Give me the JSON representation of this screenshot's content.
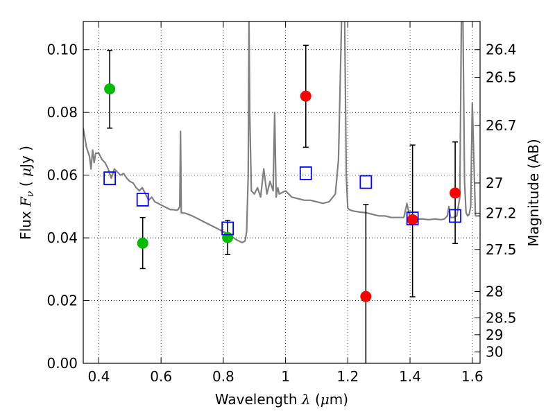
{
  "chart_data": {
    "type": "scatter",
    "xlabel_text": "Wavelength",
    "xlabel_symbol": "λ",
    "xlabel_unit_open": " (",
    "xlabel_unit_mu": "μ",
    "xlabel_unit_rest": "m)",
    "ylabel_text": "Flux",
    "ylabel_symbol_F": "F",
    "ylabel_symbol_nu": "ν",
    "ylabel_unit_open": "( ",
    "ylabel_unit_mu": "μ",
    "ylabel_unit_rest": "Jy )",
    "y2label": "Magnitude (AB)",
    "xlim": [
      0.35,
      1.625
    ],
    "ylim": [
      0.0,
      0.109
    ],
    "grid": true,
    "x_ticks": [
      0.4,
      0.6,
      0.8,
      1.0,
      1.2,
      1.4,
      1.6
    ],
    "x_tick_labels": [
      "0.4",
      "0.6",
      "0.8",
      "1",
      "1.2",
      "1.4",
      "1.6"
    ],
    "y_ticks": [
      0.0,
      0.02,
      0.04,
      0.06,
      0.08,
      0.1
    ],
    "y_tick_labels": [
      "0.00",
      "0.02",
      "0.04",
      "0.06",
      "0.08",
      "0.10"
    ],
    "y2_ticks": [
      {
        "flux": 0.1,
        "label": "26.4"
      },
      {
        "flux": 0.0912,
        "label": "26.5"
      },
      {
        "flux": 0.0758,
        "label": "26.7"
      },
      {
        "flux": 0.0575,
        "label": "27"
      },
      {
        "flux": 0.0479,
        "label": "27.2"
      },
      {
        "flux": 0.0363,
        "label": "27.5"
      },
      {
        "flux": 0.0229,
        "label": "28"
      },
      {
        "flux": 0.0145,
        "label": "28.5"
      },
      {
        "flux": 0.0091,
        "label": "29"
      },
      {
        "flux": 0.0036,
        "label": "30"
      }
    ],
    "series": [
      {
        "color": "#00bb00",
        "marker": "circle",
        "points": [
          {
            "x": 0.435,
            "y": 0.0875,
            "ylo": 0.075,
            "yhi": 0.0998
          },
          {
            "x": 0.541,
            "y": 0.0383,
            "ylo": 0.0302,
            "yhi": 0.0465
          },
          {
            "x": 0.814,
            "y": 0.0401,
            "ylo": 0.0347,
            "yhi": 0.0456
          }
        ]
      },
      {
        "color": "#ff0000",
        "marker": "circle",
        "points": [
          {
            "x": 1.065,
            "y": 0.0852,
            "ylo": 0.0689,
            "yhi": 0.1014
          },
          {
            "x": 1.258,
            "y": 0.0213,
            "ylo": -0.01,
            "yhi": 0.0506
          },
          {
            "x": 1.408,
            "y": 0.0458,
            "ylo": 0.0212,
            "yhi": 0.0696
          },
          {
            "x": 1.545,
            "y": 0.0543,
            "ylo": 0.0382,
            "yhi": 0.0706
          }
        ]
      },
      {
        "color": "#0000ff",
        "marker": "open-square",
        "points": [
          {
            "x": 0.435,
            "y": 0.059
          },
          {
            "x": 0.541,
            "y": 0.0522
          },
          {
            "x": 0.814,
            "y": 0.043
          },
          {
            "x": 1.065,
            "y": 0.0606
          },
          {
            "x": 1.258,
            "y": 0.0578
          },
          {
            "x": 1.408,
            "y": 0.0462
          },
          {
            "x": 1.545,
            "y": 0.047
          }
        ]
      }
    ],
    "spectrum": {
      "color": "#808080",
      "x": [
        0.35,
        0.36,
        0.37,
        0.375,
        0.38,
        0.385,
        0.39,
        0.4,
        0.41,
        0.42,
        0.43,
        0.44,
        0.45,
        0.46,
        0.47,
        0.48,
        0.49,
        0.5,
        0.51,
        0.52,
        0.53,
        0.54,
        0.55,
        0.56,
        0.57,
        0.58,
        0.59,
        0.6,
        0.61,
        0.62,
        0.63,
        0.64,
        0.65,
        0.655,
        0.66,
        0.6625,
        0.665,
        0.67,
        0.68,
        0.7,
        0.72,
        0.74,
        0.76,
        0.78,
        0.8,
        0.82,
        0.84,
        0.86,
        0.87,
        0.875,
        0.88,
        0.8825,
        0.885,
        0.89,
        0.9,
        0.91,
        0.92,
        0.93,
        0.94,
        0.95,
        0.96,
        0.965,
        0.97,
        0.975,
        0.98,
        0.99,
        1.0,
        1.02,
        1.04,
        1.06,
        1.08,
        1.1,
        1.12,
        1.14,
        1.16,
        1.17,
        1.18,
        1.185,
        1.19,
        1.195,
        1.2,
        1.205,
        1.21,
        1.22,
        1.24,
        1.26,
        1.28,
        1.3,
        1.32,
        1.34,
        1.36,
        1.38,
        1.39,
        1.4,
        1.42,
        1.44,
        1.46,
        1.48,
        1.5,
        1.51,
        1.52,
        1.525,
        1.53,
        1.54,
        1.55,
        1.555,
        1.56,
        1.565,
        1.57,
        1.575,
        1.58,
        1.585,
        1.59,
        1.595,
        1.6,
        1.61,
        1.625
      ],
      "y": [
        0.075,
        0.069,
        0.066,
        0.062,
        0.068,
        0.064,
        0.067,
        0.067,
        0.065,
        0.064,
        0.062,
        0.059,
        0.062,
        0.061,
        0.06,
        0.0605,
        0.059,
        0.058,
        0.0575,
        0.056,
        0.055,
        0.056,
        0.054,
        0.052,
        0.053,
        0.0515,
        0.051,
        0.0505,
        0.05,
        0.0495,
        0.049,
        0.049,
        0.0488,
        0.049,
        0.05,
        0.074,
        0.048,
        0.048,
        0.0478,
        0.047,
        0.046,
        0.045,
        0.044,
        0.043,
        0.042,
        0.041,
        0.0395,
        0.0385,
        0.039,
        0.042,
        0.06,
        0.11,
        0.08,
        0.055,
        0.054,
        0.056,
        0.053,
        0.062,
        0.054,
        0.058,
        0.055,
        0.08,
        0.053,
        0.056,
        0.054,
        0.0545,
        0.055,
        0.053,
        0.0525,
        0.052,
        0.052,
        0.0515,
        0.051,
        0.0515,
        0.054,
        0.065,
        0.11,
        0.11,
        0.11,
        0.06,
        0.0495,
        0.049,
        0.0488,
        0.0485,
        0.0482,
        0.048,
        0.0475,
        0.047,
        0.047,
        0.0465,
        0.0465,
        0.0465,
        0.051,
        0.046,
        0.046,
        0.046,
        0.0458,
        0.046,
        0.0458,
        0.046,
        0.047,
        0.05,
        0.0465,
        0.0465,
        0.047,
        0.05,
        0.053,
        0.11,
        0.11,
        0.058,
        0.048,
        0.047,
        0.0475,
        0.05,
        0.083,
        0.047,
        0.047
      ]
    }
  }
}
